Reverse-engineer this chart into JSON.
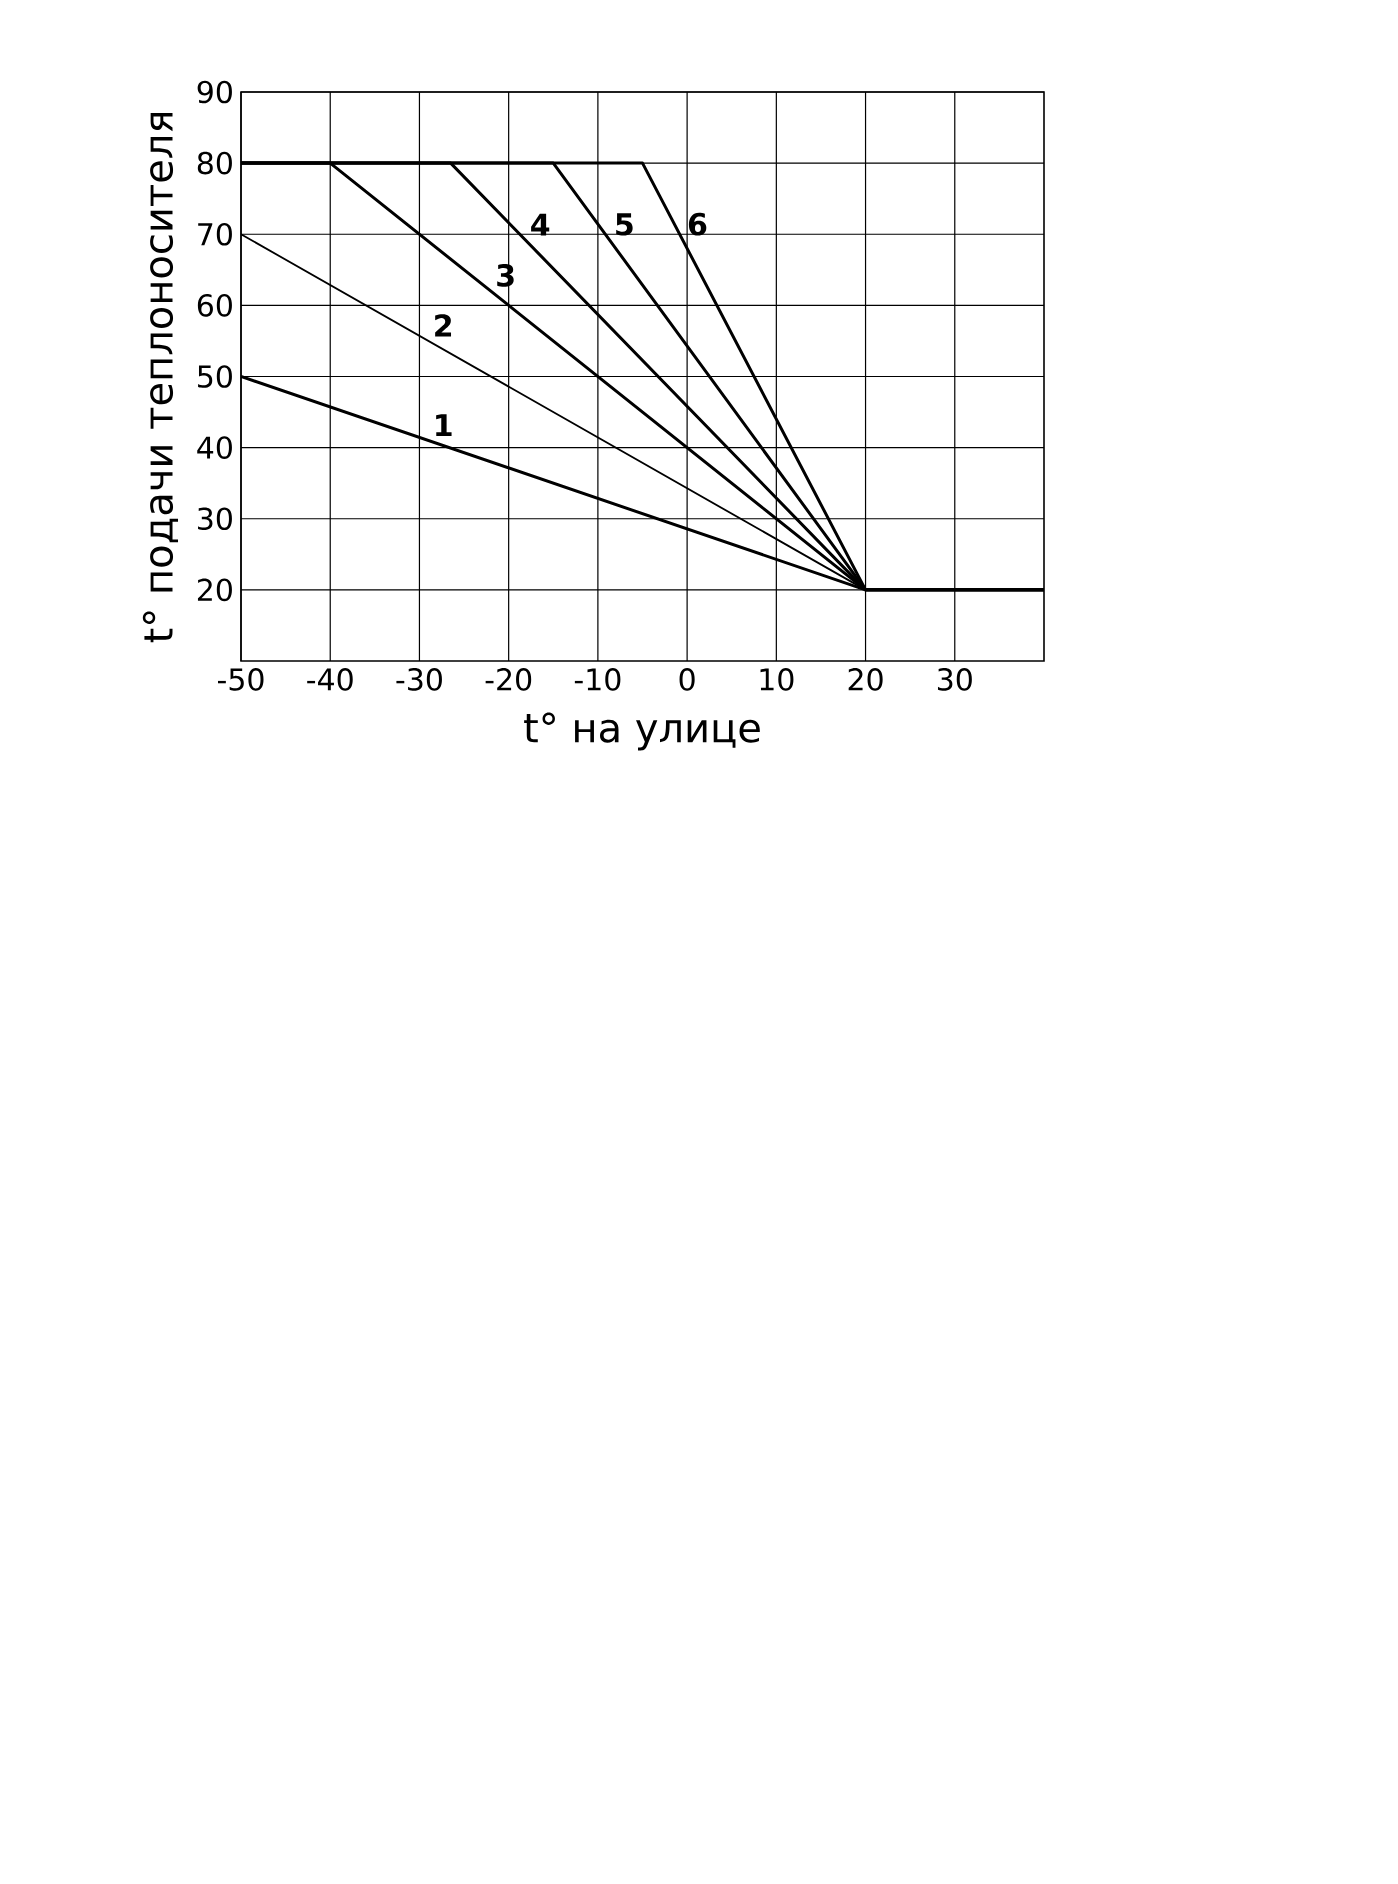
{
  "chart_data": {
    "type": "line",
    "xlabel": "t° на улице",
    "ylabel": "t° подачи теплоносителя",
    "xlim": [
      -50,
      40
    ],
    "ylim": [
      10,
      90
    ],
    "xticks": [
      -50,
      -40,
      -30,
      -20,
      -10,
      0,
      10,
      20,
      30
    ],
    "yticks": [
      20,
      30,
      40,
      50,
      60,
      70,
      80,
      90
    ],
    "grid": true,
    "line_style": "solid",
    "marker": "none",
    "series": [
      {
        "name": "1",
        "color": "#000000",
        "x": [
          -50,
          20,
          40
        ],
        "values": [
          50,
          20,
          20
        ]
      },
      {
        "name": "2",
        "color": "#000000",
        "x": [
          -50,
          20,
          40
        ],
        "values": [
          70,
          20,
          20
        ]
      },
      {
        "name": "3",
        "color": "#000000",
        "x": [
          -50,
          -40,
          20,
          40
        ],
        "values": [
          80,
          80,
          20,
          20
        ]
      },
      {
        "name": "4",
        "color": "#000000",
        "x": [
          -50,
          -26.5,
          20,
          40
        ],
        "values": [
          80,
          80,
          20,
          20
        ]
      },
      {
        "name": "5",
        "color": "#000000",
        "x": [
          -50,
          -15,
          20,
          40
        ],
        "values": [
          80,
          80,
          20,
          20
        ]
      },
      {
        "name": "6",
        "color": "#000000",
        "x": [
          -50,
          -5,
          20,
          40
        ],
        "values": [
          80,
          80,
          20,
          20
        ]
      }
    ]
  }
}
